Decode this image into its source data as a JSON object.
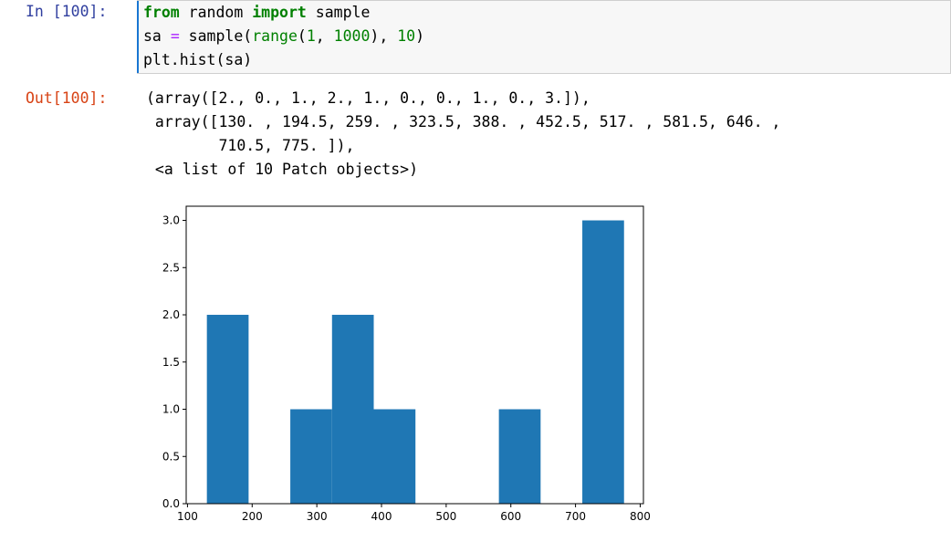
{
  "input": {
    "prompt": "In [100]:",
    "line1": {
      "kw1": "from",
      "mod": " random ",
      "kw2": "import",
      "rest": " sample"
    },
    "line2": {
      "var": "sa ",
      "eq": "=",
      "func": " sample(",
      "builtin": "range",
      "open": "(",
      "n1": "1",
      "comma": ", ",
      "n2": "1000",
      "close": "), ",
      "n3": "10",
      "end": ")"
    },
    "line3": "plt.hist(sa)"
  },
  "output": {
    "prompt": "Out[100]:",
    "lines": [
      "(array([2., 0., 1., 2., 1., 0., 0., 1., 0., 3.]),",
      " array([130. , 194.5, 259. , 323.5, 388. , 452.5, 517. , 581.5, 646. ,",
      "        710.5, 775. ]),",
      " <a list of 10 Patch objects>)"
    ]
  },
  "chart_data": {
    "type": "bar",
    "bin_edges": [
      130,
      194.5,
      259,
      323.5,
      388,
      452.5,
      517,
      581.5,
      646,
      710.5,
      775
    ],
    "counts": [
      2,
      0,
      1,
      2,
      1,
      0,
      0,
      1,
      0,
      3
    ],
    "xlim": [
      98,
      805
    ],
    "ylim": [
      0,
      3.15
    ],
    "xticks": [
      "100",
      "200",
      "300",
      "400",
      "500",
      "600",
      "700",
      "800"
    ],
    "xtick_values": [
      100,
      200,
      300,
      400,
      500,
      600,
      700,
      800
    ],
    "yticks": [
      "0.0",
      "0.5",
      "1.0",
      "1.5",
      "2.0",
      "2.5",
      "3.0"
    ],
    "ytick_values": [
      0,
      0.5,
      1.0,
      1.5,
      2.0,
      2.5,
      3.0
    ],
    "bar_color": "#1f77b4",
    "title": "",
    "xlabel": "",
    "ylabel": ""
  }
}
